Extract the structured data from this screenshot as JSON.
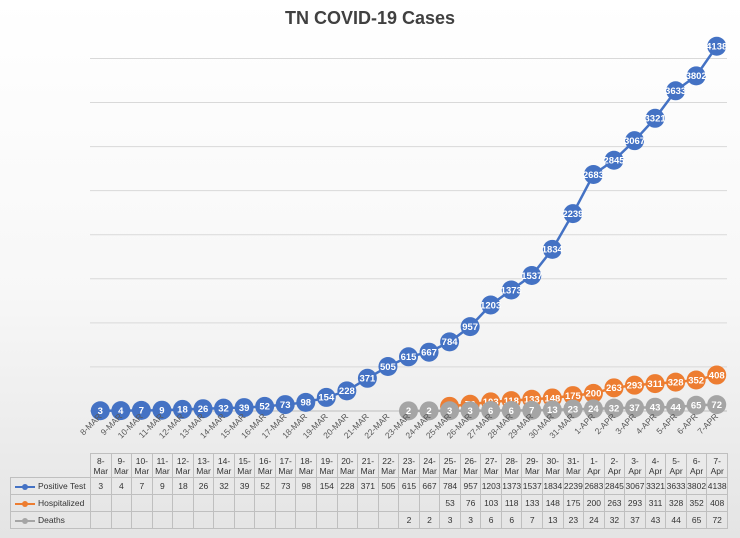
{
  "chart_data": {
    "type": "line",
    "title": "TN COVID-19 Cases",
    "xlabel": "",
    "ylabel": "",
    "ylim": [
      0,
      4300
    ],
    "grid": true,
    "data_labels": true,
    "categories": [
      "8-MAR",
      "9-MAR",
      "10-MAR",
      "11-MAR",
      "12-MAR",
      "13-MAR",
      "14-MAR",
      "15-MAR",
      "16-MAR",
      "17-MAR",
      "18-MAR",
      "19-MAR",
      "20-MAR",
      "21-MAR",
      "22-MAR",
      "23-MAR",
      "24-MAR",
      "25-MAR",
      "26-MAR",
      "27-MAR",
      "28-MAR",
      "29-MAR",
      "30-MAR",
      "31-MAR",
      "1-APR",
      "2-APR",
      "3-APR",
      "4-APR",
      "5-APR",
      "6-APR",
      "7-APR"
    ],
    "table_header": [
      [
        "8-",
        "Mar"
      ],
      [
        "9-",
        "Mar"
      ],
      [
        "10-",
        "Mar"
      ],
      [
        "11-",
        "Mar"
      ],
      [
        "12-",
        "Mar"
      ],
      [
        "13-",
        "Mar"
      ],
      [
        "14-",
        "Mar"
      ],
      [
        "15-",
        "Mar"
      ],
      [
        "16-",
        "Mar"
      ],
      [
        "17-",
        "Mar"
      ],
      [
        "18-",
        "Mar"
      ],
      [
        "19-",
        "Mar"
      ],
      [
        "20-",
        "Mar"
      ],
      [
        "21-",
        "Mar"
      ],
      [
        "22-",
        "Mar"
      ],
      [
        "23-",
        "Mar"
      ],
      [
        "24-",
        "Mar"
      ],
      [
        "25-",
        "Mar"
      ],
      [
        "26-",
        "Mar"
      ],
      [
        "27-",
        "Mar"
      ],
      [
        "28-",
        "Mar"
      ],
      [
        "29-",
        "Mar"
      ],
      [
        "30-",
        "Mar"
      ],
      [
        "31-",
        "Mar"
      ],
      [
        "1-",
        "Apr"
      ],
      [
        "2-",
        "Apr"
      ],
      [
        "3-",
        "Apr"
      ],
      [
        "4-",
        "Apr"
      ],
      [
        "5-",
        "Apr"
      ],
      [
        "6-",
        "Apr"
      ],
      [
        "7-",
        "Apr"
      ]
    ],
    "series": [
      {
        "name": "Positive Test",
        "color": "#4472C4",
        "values": [
          3,
          4,
          7,
          9,
          18,
          26,
          32,
          39,
          52,
          73,
          98,
          154,
          228,
          371,
          505,
          615,
          667,
          784,
          957,
          1203,
          1373,
          1537,
          1834,
          2239,
          2683,
          2845,
          3067,
          3321,
          3633,
          3802,
          4138
        ]
      },
      {
        "name": "Hospitalized",
        "color": "#ED7D31",
        "values": [
          null,
          null,
          null,
          null,
          null,
          null,
          null,
          null,
          null,
          null,
          null,
          null,
          null,
          null,
          null,
          null,
          null,
          53,
          76,
          103,
          118,
          133,
          148,
          175,
          200,
          263,
          293,
          311,
          328,
          352,
          408
        ]
      },
      {
        "name": "Deaths",
        "color": "#A5A5A5",
        "values": [
          null,
          null,
          null,
          null,
          null,
          null,
          null,
          null,
          null,
          null,
          null,
          null,
          null,
          null,
          null,
          2,
          2,
          3,
          3,
          6,
          6,
          7,
          13,
          23,
          24,
          32,
          37,
          43,
          44,
          65,
          72
        ]
      }
    ]
  }
}
